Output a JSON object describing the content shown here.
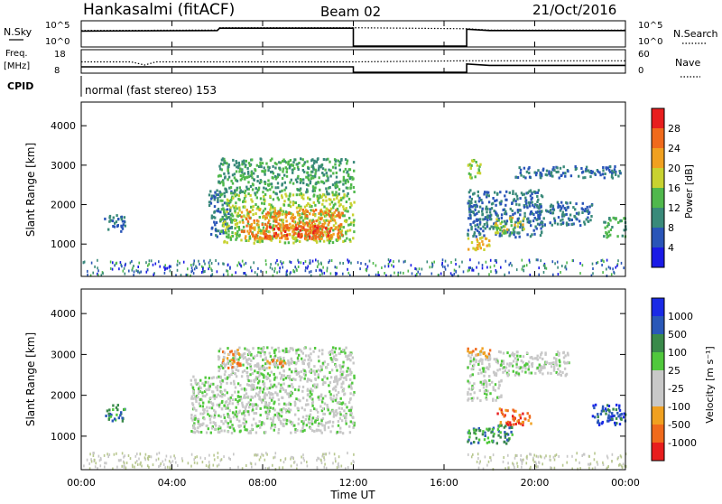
{
  "header": {
    "station": "Hankasalmi (fitACF)",
    "beam": "Beam 02",
    "date": "21/Oct/2016"
  },
  "params_panels": {
    "nsky": {
      "label": "N.Sky",
      "right_label": "N.Search",
      "yticks_left": [
        "10^5",
        "10^0"
      ],
      "yticks_right": [
        "10^5",
        "10^0"
      ]
    },
    "freq": {
      "label_line1": "Freq.",
      "label_line2": "[MHz]",
      "right_label": "Nave",
      "yticks_left": [
        "18",
        "8"
      ],
      "yticks_right": [
        "60",
        "0"
      ]
    },
    "cpid": {
      "label": "CPID",
      "value": "normal (fast stereo) 153"
    }
  },
  "colors": {
    "power_scale": [
      "#1a1ae6",
      "#2a55b8",
      "#3a8a7a",
      "#50b84c",
      "#c8d230",
      "#f0a020",
      "#f06a1c",
      "#e81e1e"
    ],
    "velocity_scale": [
      "#e81e1e",
      "#f06a1c",
      "#f0a020",
      "#c8c8c8",
      "#c8c8c8",
      "#50c83c",
      "#3a8a4a",
      "#2a58b8",
      "#1a2ae6"
    ],
    "ground_scatter": "#c8c8c8"
  },
  "chart_data": [
    {
      "type": "line",
      "name": "nsky-nsearch",
      "x_unit": "hours UT",
      "xlim": [
        0,
        24
      ],
      "ylim": [
        0,
        5
      ],
      "scale": "log10",
      "series": [
        {
          "style": "solid",
          "points": [
            [
              0,
              3.2
            ],
            [
              6,
              3.3
            ],
            [
              6.1,
              3.8
            ],
            [
              12,
              3.8
            ],
            [
              12,
              0
            ],
            [
              17,
              0
            ],
            [
              17,
              3.6
            ],
            [
              18,
              3.3
            ],
            [
              24,
              3.3
            ]
          ]
        },
        {
          "style": "dotted",
          "points": [
            [
              0,
              3.3
            ],
            [
              6,
              3.4
            ],
            [
              6.1,
              3.9
            ],
            [
              12,
              3.9
            ],
            [
              17,
              3.7
            ],
            [
              18,
              3.4
            ],
            [
              24,
              3.4
            ]
          ]
        }
      ]
    },
    {
      "type": "line",
      "name": "freq-nave",
      "x_unit": "hours UT",
      "xlim": [
        0,
        24
      ],
      "ylim": [
        8,
        18
      ],
      "series": [
        {
          "style": "solid",
          "points": [
            [
              0,
              10.6
            ],
            [
              12,
              10.6
            ],
            [
              12,
              8
            ],
            [
              17,
              8
            ],
            [
              17,
              12
            ],
            [
              18,
              11.3
            ],
            [
              24,
              11.3
            ]
          ]
        },
        {
          "style": "dotted",
          "points": [
            [
              0,
              13
            ],
            [
              2.2,
              13
            ],
            [
              2.8,
              11.5
            ],
            [
              3.3,
              13
            ],
            [
              12,
              13
            ],
            [
              17,
              13.5
            ],
            [
              24,
              13.5
            ]
          ]
        }
      ]
    },
    {
      "type": "heatmap",
      "name": "power",
      "x_unit": "hours UT",
      "xlim": [
        0,
        24
      ],
      "ylim": [
        180,
        4600
      ],
      "ylabel": "Slant Range [km]",
      "yticks": [
        1000,
        2000,
        3000,
        4000
      ],
      "colorbar": {
        "label": "Power [dB]",
        "ticks": [
          4,
          8,
          12,
          16,
          20,
          24,
          28
        ],
        "range": [
          0,
          32
        ]
      },
      "regions": [
        {
          "t0": 1.0,
          "t1": 1.9,
          "r0": 1350,
          "r1": 1800,
          "value": 8
        },
        {
          "t0": 5.6,
          "t1": 6.6,
          "r0": 1200,
          "r1": 2400,
          "value": 8
        },
        {
          "t0": 6.1,
          "t1": 12.0,
          "r0": 1050,
          "r1": 2300,
          "value": 16
        },
        {
          "t0": 7.0,
          "t1": 11.5,
          "r0": 1150,
          "r1": 1900,
          "value": 24
        },
        {
          "t0": 8.0,
          "t1": 11.0,
          "r0": 1200,
          "r1": 1500,
          "value": 28
        },
        {
          "t0": 6.0,
          "t1": 12.0,
          "r0": 2300,
          "r1": 3200,
          "value": 12
        },
        {
          "t0": 17.0,
          "t1": 17.6,
          "r0": 2700,
          "r1": 3200,
          "value": 16
        },
        {
          "t0": 17.0,
          "t1": 18.0,
          "r0": 850,
          "r1": 1200,
          "value": 20
        },
        {
          "t0": 17.0,
          "t1": 20.3,
          "r0": 1200,
          "r1": 2400,
          "value": 8
        },
        {
          "t0": 18.2,
          "t1": 19.5,
          "r0": 1300,
          "r1": 1700,
          "value": 18
        },
        {
          "t0": 20.0,
          "t1": 22.5,
          "r0": 1500,
          "r1": 2100,
          "value": 8
        },
        {
          "t0": 23.0,
          "t1": 24.0,
          "r0": 1200,
          "r1": 1700,
          "value": 12
        },
        {
          "t0": 19.0,
          "t1": 23.8,
          "r0": 2700,
          "r1": 3000,
          "value": 8
        }
      ]
    },
    {
      "type": "heatmap",
      "name": "velocity",
      "x_unit": "hours UT",
      "xlim": [
        0,
        24
      ],
      "ylim": [
        180,
        4600
      ],
      "ylabel": "Slant Range [km]",
      "yticks": [
        1000,
        2000,
        3000,
        4000
      ],
      "colorbar": {
        "label": "Velocity [m s⁻¹]",
        "ticks": [
          "1000",
          "500",
          "100",
          "25",
          "-25",
          "-100",
          "-500",
          "-1000"
        ]
      },
      "regions": [
        {
          "t0": 1.0,
          "t1": 1.9,
          "r0": 1400,
          "r1": 1800,
          "value": 200
        },
        {
          "t0": 4.8,
          "t1": 12.0,
          "r0": 1100,
          "r1": 2500,
          "value": 0
        },
        {
          "t0": 6.0,
          "t1": 12.0,
          "r0": 2500,
          "r1": 3200,
          "value": 0
        },
        {
          "t0": 6.2,
          "t1": 7.0,
          "r0": 2700,
          "r1": 3200,
          "value": -300
        },
        {
          "t0": 8.0,
          "t1": 9.0,
          "r0": 2700,
          "r1": 2900,
          "value": -300
        },
        {
          "t0": 17.0,
          "t1": 21.5,
          "r0": 2500,
          "r1": 3100,
          "value": 0
        },
        {
          "t0": 17.0,
          "t1": 18.5,
          "r0": 1900,
          "r1": 2400,
          "value": 0
        },
        {
          "t0": 17.0,
          "t1": 18.0,
          "r0": 2900,
          "r1": 3200,
          "value": -300
        },
        {
          "t0": 18.3,
          "t1": 19.8,
          "r0": 1300,
          "r1": 1700,
          "value": -500
        },
        {
          "t0": 17.0,
          "t1": 19.0,
          "r0": 850,
          "r1": 1300,
          "value": 200
        },
        {
          "t0": 22.5,
          "t1": 24.0,
          "r0": 1300,
          "r1": 1800,
          "value": 600
        }
      ]
    }
  ],
  "axes": {
    "xlabel": "Time UT",
    "xticks": [
      "00:00",
      "04:00",
      "08:00",
      "12:00",
      "16:00",
      "20:00",
      "00:00"
    ]
  }
}
